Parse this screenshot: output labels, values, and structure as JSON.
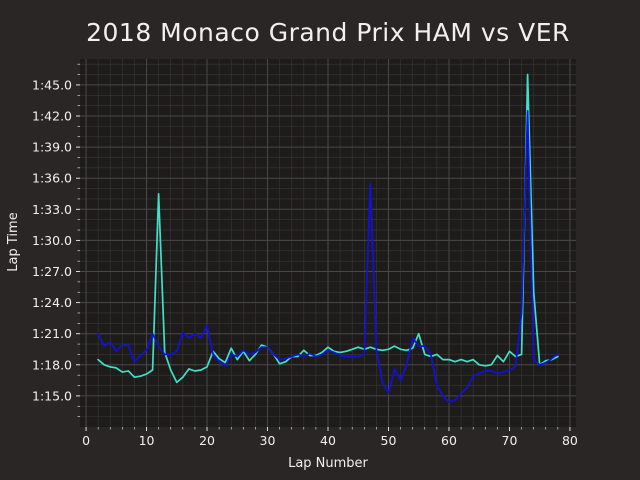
{
  "chart_data": {
    "type": "line",
    "title": "2018 Monaco Grand Prix HAM vs VER",
    "xlabel": "Lap Number",
    "ylabel": "Lap Time",
    "xlim": [
      -1,
      81
    ],
    "ylim": [
      72.0,
      107.5
    ],
    "x_ticks": [
      0,
      10,
      20,
      30,
      40,
      50,
      60,
      70,
      80
    ],
    "y_ticks": [
      75,
      78,
      81,
      84,
      87,
      90,
      93,
      96,
      99,
      102,
      105
    ],
    "y_tick_labels": [
      "1:15.0",
      "1:18.0",
      "1:21.0",
      "1:24.0",
      "1:27.0",
      "1:30.0",
      "1:33.0",
      "1:36.0",
      "1:39.0",
      "1:42.0",
      "1:45.0"
    ],
    "grid": true,
    "background": "#1e1c1b",
    "grid_color": "#4a4747",
    "series": [
      {
        "color": "#40e0c8",
        "x": [
          2,
          3,
          4,
          5,
          6,
          7,
          8,
          9,
          10,
          11,
          12,
          13,
          14,
          15,
          16,
          17,
          18,
          19,
          20,
          21,
          22,
          23,
          24,
          25,
          26,
          27,
          28,
          29,
          30,
          31,
          32,
          33,
          34,
          35,
          36,
          37,
          38,
          39,
          40,
          41,
          42,
          43,
          44,
          45,
          46,
          47,
          48,
          49,
          50,
          51,
          52,
          53,
          54,
          55,
          56,
          57,
          58,
          59,
          60,
          61,
          62,
          63,
          64,
          65,
          66,
          67,
          68,
          69,
          70,
          71,
          72,
          73,
          74,
          75,
          76,
          77,
          78
        ],
        "values": [
          78.5,
          78.0,
          77.8,
          77.7,
          77.3,
          77.4,
          76.8,
          76.9,
          77.1,
          77.5,
          94.5,
          79.2,
          77.5,
          76.3,
          76.8,
          77.6,
          77.4,
          77.5,
          77.8,
          79.3,
          78.6,
          78.2,
          79.6,
          78.5,
          79.3,
          78.4,
          79.0,
          79.9,
          79.7,
          79.0,
          78.1,
          78.3,
          78.8,
          78.8,
          79.4,
          78.9,
          78.9,
          79.2,
          79.7,
          79.3,
          79.2,
          79.3,
          79.5,
          79.7,
          79.5,
          79.7,
          79.5,
          79.4,
          79.5,
          79.8,
          79.5,
          79.4,
          79.6,
          81.0,
          79.0,
          78.8,
          79.0,
          78.5,
          78.5,
          78.3,
          78.5,
          78.3,
          78.5,
          78.0,
          77.9,
          78.0,
          78.9,
          78.3,
          79.3,
          78.8,
          79.0,
          106.0,
          85.0,
          78.0,
          78.4,
          78.5,
          78.8
        ]
      },
      {
        "color": "#1010e0",
        "x": [
          2,
          3,
          4,
          5,
          6,
          7,
          8,
          9,
          10,
          11,
          12,
          13,
          14,
          15,
          16,
          17,
          18,
          19,
          20,
          21,
          22,
          23,
          24,
          25,
          26,
          27,
          28,
          29,
          30,
          31,
          32,
          33,
          34,
          35,
          36,
          37,
          38,
          39,
          40,
          41,
          42,
          43,
          44,
          45,
          46,
          47,
          48,
          49,
          50,
          51,
          52,
          53,
          54,
          55,
          56,
          57,
          58,
          59,
          60,
          61,
          62,
          63,
          64,
          65,
          66,
          67,
          68,
          69,
          70,
          71,
          72,
          73,
          74,
          75,
          76,
          77,
          78
        ],
        "values": [
          81.0,
          79.8,
          80.2,
          79.3,
          79.9,
          79.9,
          78.3,
          78.9,
          79.4,
          81.0,
          79.8,
          79.0,
          79.0,
          79.3,
          81.1,
          80.6,
          81.0,
          80.6,
          81.8,
          79.0,
          78.3,
          77.9,
          79.0,
          78.8,
          79.4,
          79.0,
          79.2,
          79.7,
          79.7,
          79.0,
          78.5,
          78.6,
          78.8,
          79.0,
          78.8,
          79.1,
          78.8,
          79.0,
          79.4,
          79.2,
          78.9,
          78.8,
          78.8,
          78.8,
          79.0,
          95.5,
          79.5,
          76.3,
          75.3,
          77.6,
          76.5,
          78.0,
          80.6,
          79.8,
          79.8,
          79.0,
          76.0,
          75.0,
          74.4,
          74.6,
          75.2,
          75.8,
          76.9,
          77.2,
          77.4,
          77.4,
          77.2,
          77.3,
          77.5,
          77.8,
          83.0,
          102.5,
          78.5,
          78.0,
          78.2,
          78.6,
          79.1
        ]
      }
    ]
  }
}
